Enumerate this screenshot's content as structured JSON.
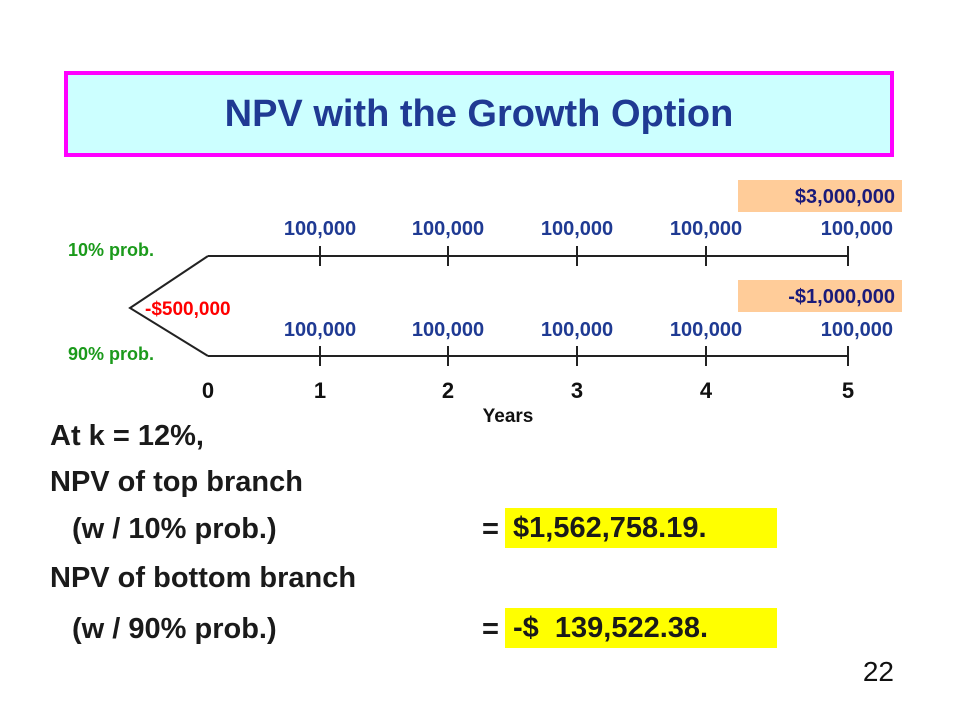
{
  "title": "NPV with the Growth Option",
  "diagram": {
    "top_terminal": "$3,000,000",
    "bottom_terminal": "-$1,000,000",
    "initial": "-$500,000",
    "top_prob": "10% prob.",
    "bottom_prob": "90% prob.",
    "top_cash_flows": [
      "100,000",
      "100,000",
      "100,000",
      "100,000",
      "100,000"
    ],
    "bottom_cash_flows": [
      "100,000",
      "100,000",
      "100,000",
      "100,000",
      "100,000"
    ],
    "years": [
      "0",
      "1",
      "2",
      "3",
      "4",
      "5"
    ],
    "axis_label": "Years",
    "colors": {
      "title_fill": "#ccffff",
      "title_border": "#ff00ff",
      "cash_flow_text": "#1f3a93",
      "prob_text": "#1b9a1b",
      "terminal_fill": "#ffcc99",
      "highlight": "#ffff00"
    }
  },
  "text": {
    "rate_line": "At k = 12%,",
    "top_label": "NPV of top branch",
    "top_prob_label": "(w / 10% prob.)",
    "top_eq": "=",
    "top_value": "$1,562,758.19.",
    "bottom_label": "NPV of bottom branch",
    "bottom_prob_label": "(w / 90% prob.)",
    "bottom_eq": "=",
    "bottom_value": "-$  139,522.38."
  },
  "page_number": "22"
}
